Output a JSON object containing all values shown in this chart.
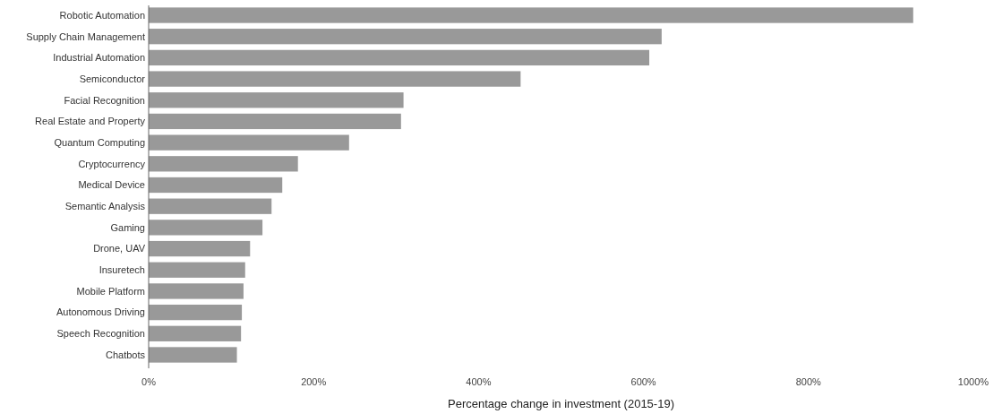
{
  "chart_data": {
    "type": "bar",
    "orientation": "horizontal",
    "xlabel": "Percentage change in investment (2015-19)",
    "categories": [
      "Robotic Automation",
      "Supply Chain Management",
      "Industrial Automation",
      "Semiconductor",
      "Facial Recognition",
      "Real Estate and Property",
      "Quantum Computing",
      "Cryptocurrency",
      "Medical Device",
      "Semantic Analysis",
      "Gaming",
      "Drone, UAV",
      "Insuretech",
      "Mobile Platform",
      "Autonomous Driving",
      "Speech Recognition",
      "Chatbots"
    ],
    "values": [
      927,
      622,
      607,
      451,
      309,
      306,
      243,
      181,
      162,
      149,
      138,
      123,
      117,
      115,
      113,
      112,
      107
    ],
    "color": "#999999",
    "xlim": [
      0,
      1000
    ],
    "xticks": [
      {
        "value": 0,
        "label": "0%"
      },
      {
        "value": 200,
        "label": "200%"
      },
      {
        "value": 400,
        "label": "400%"
      },
      {
        "value": 600,
        "label": "600%"
      },
      {
        "value": 800,
        "label": "800%"
      },
      {
        "value": 1000,
        "label": "1000%"
      }
    ],
    "grid": false
  }
}
